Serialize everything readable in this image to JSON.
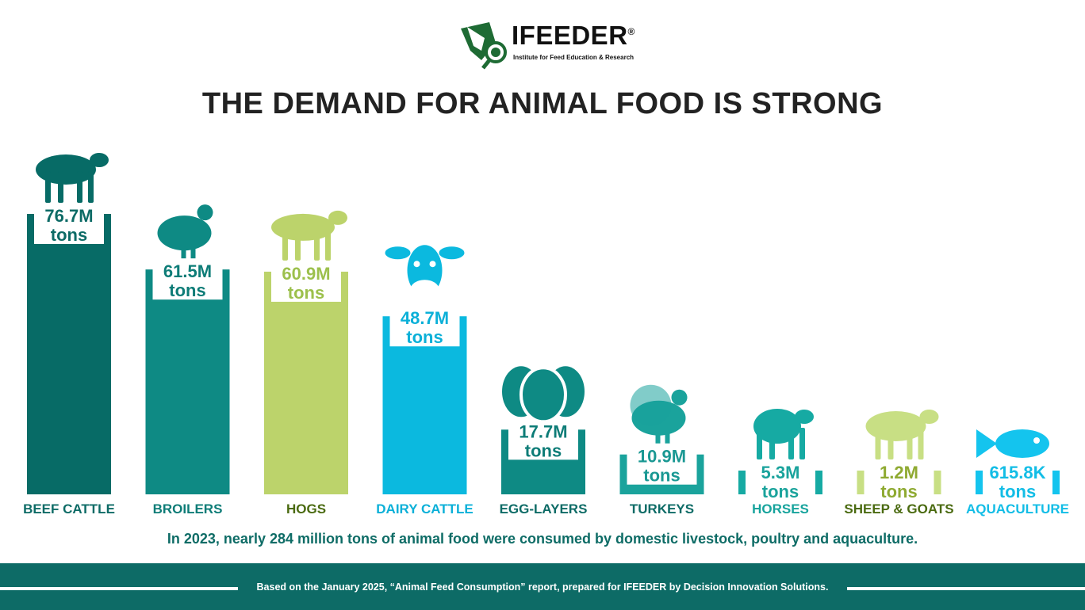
{
  "logo": {
    "name": "IFEEDER",
    "registered": "®",
    "tagline": "Institute for Feed Education & Research",
    "color": "#1e6b34"
  },
  "title": "THE DEMAND FOR ANIMAL FOOD IS STRONG",
  "summary": "In 2023, nearly 284 million tons of animal food were consumed by domestic livestock, poultry and aquaculture.",
  "footer": {
    "note": "Based on the January 2025, “Animal Feed Consumption” report, prepared for IFEEDER by Decision Innovation Solutions.",
    "background": "#0d6b66"
  },
  "chart_data": {
    "type": "bar",
    "title": "THE DEMAND FOR ANIMAL FOOD IS STRONG",
    "xlabel": "",
    "ylabel": "",
    "unit": "tons",
    "categories": [
      "BEEF CATTLE",
      "BROILERS",
      "HOGS",
      "DAIRY CATTLE",
      "EGG-LAYERS",
      "TURKEYS",
      "HORSES",
      "SHEEP & GOATS",
      "AQUACULTURE"
    ],
    "values": [
      76700000,
      61500000,
      60900000,
      48700000,
      17700000,
      10900000,
      5300000,
      1200000,
      615800
    ],
    "value_labels": [
      "76.7M",
      "61.5M",
      "60.9M",
      "48.7M",
      "17.7M",
      "10.9M",
      "5.3M",
      "1.2M",
      "615.8K"
    ],
    "unit_label": "tons",
    "colors": [
      "#076b66",
      "#0e8a84",
      "#bcd36b",
      "#0bb9df",
      "#0e8a84",
      "#1aa39c",
      "#16aaa3",
      "#c8df84",
      "#14c4ee"
    ],
    "label_colors": [
      "#0d6b66",
      "#0d7c77",
      "#9cc04c",
      "#0bb0d8",
      "#0d7c77",
      "#1a9893",
      "#1aa39c",
      "#8faa32",
      "#12bde6"
    ],
    "category_colors": [
      "#0d6b66",
      "#0d7c77",
      "#4a6a10",
      "#0bb0d8",
      "#0d6b66",
      "#0d6b66",
      "#16a39c",
      "#4a6a10",
      "#12bde6"
    ],
    "icons": [
      "cow-icon",
      "chicken-icon",
      "pig-icon",
      "dairy-cow-icon",
      "eggs-icon",
      "turkey-icon",
      "horse-icon",
      "goat-icon",
      "fish-icon"
    ],
    "grid": false,
    "legend": "none"
  }
}
